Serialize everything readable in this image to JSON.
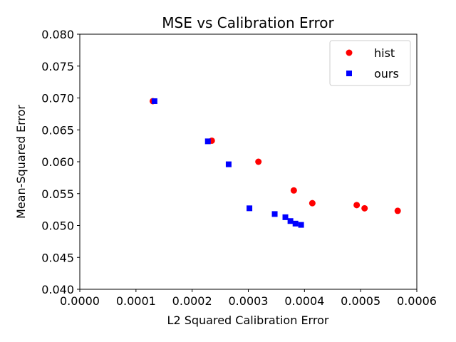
{
  "chart_data": {
    "type": "scatter",
    "title": "MSE vs Calibration Error",
    "xlabel": "L2 Squared Calibration Error",
    "ylabel": "Mean-Squared Error",
    "xlim": [
      0.0,
      0.0006
    ],
    "ylim": [
      0.04,
      0.08
    ],
    "x_ticks": [
      "0.0000",
      "0.0001",
      "0.0002",
      "0.0003",
      "0.0004",
      "0.0005",
      "0.0006"
    ],
    "y_ticks": [
      "0.040",
      "0.045",
      "0.050",
      "0.055",
      "0.060",
      "0.065",
      "0.070",
      "0.075",
      "0.080"
    ],
    "grid": false,
    "legend_position": "top-right",
    "series": [
      {
        "name": "hist",
        "marker": "circle",
        "color": "#ff0000",
        "points": [
          [
            0.00013,
            0.0695
          ],
          [
            0.000235,
            0.0633
          ],
          [
            0.000318,
            0.06
          ],
          [
            0.000381,
            0.0555
          ],
          [
            0.000414,
            0.0535
          ],
          [
            0.000493,
            0.0532
          ],
          [
            0.000507,
            0.0527
          ],
          [
            0.000566,
            0.0523
          ]
        ]
      },
      {
        "name": "ours",
        "marker": "square",
        "color": "#0000ff",
        "points": [
          [
            0.000133,
            0.0695
          ],
          [
            0.000228,
            0.0632
          ],
          [
            0.000265,
            0.0596
          ],
          [
            0.000302,
            0.0527
          ],
          [
            0.000347,
            0.0518
          ],
          [
            0.000366,
            0.0513
          ],
          [
            0.000375,
            0.0507
          ],
          [
            0.000384,
            0.0503
          ],
          [
            0.000394,
            0.0501
          ]
        ]
      }
    ]
  }
}
